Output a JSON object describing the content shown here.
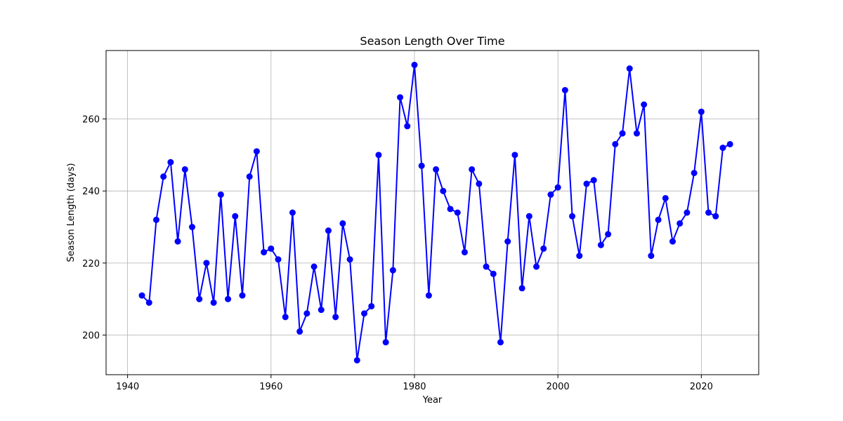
{
  "chart_data": {
    "type": "line",
    "title": "Season Length Over Time",
    "xlabel": "Year",
    "ylabel": "Season Length (days)",
    "xlim": [
      1937,
      2028
    ],
    "ylim": [
      189,
      279
    ],
    "xticks": [
      1940,
      1960,
      1980,
      2000,
      2020
    ],
    "yticks": [
      200,
      220,
      240,
      260
    ],
    "grid": true,
    "series": [
      {
        "color": "#0000ff",
        "marker": "circle",
        "x": [
          1942,
          1943,
          1944,
          1945,
          1946,
          1947,
          1948,
          1949,
          1950,
          1951,
          1952,
          1953,
          1954,
          1955,
          1956,
          1957,
          1958,
          1959,
          1960,
          1961,
          1962,
          1963,
          1964,
          1965,
          1966,
          1967,
          1968,
          1969,
          1970,
          1971,
          1972,
          1973,
          1974,
          1975,
          1976,
          1977,
          1978,
          1979,
          1980,
          1981,
          1982,
          1983,
          1984,
          1985,
          1986,
          1987,
          1988,
          1989,
          1990,
          1991,
          1992,
          1993,
          1994,
          1995,
          1996,
          1997,
          1998,
          1999,
          2000,
          2001,
          2002,
          2003,
          2004,
          2005,
          2006,
          2007,
          2008,
          2009,
          2010,
          2011,
          2012,
          2013,
          2014,
          2015,
          2016,
          2017,
          2018,
          2019,
          2020,
          2021,
          2022,
          2023,
          2024
        ],
        "y": [
          211,
          209,
          232,
          244,
          248,
          226,
          246,
          230,
          210,
          220,
          209,
          239,
          210,
          233,
          211,
          244,
          251,
          223,
          224,
          221,
          205,
          234,
          201,
          206,
          219,
          207,
          229,
          205,
          231,
          221,
          193,
          206,
          208,
          250,
          198,
          218,
          266,
          258,
          275,
          247,
          211,
          246,
          240,
          235,
          234,
          223,
          246,
          242,
          219,
          217,
          198,
          226,
          250,
          213,
          233,
          219,
          224,
          239,
          241,
          268,
          233,
          222,
          242,
          243,
          225,
          228,
          253,
          256,
          274,
          256,
          264,
          222,
          232,
          238,
          226,
          231,
          234,
          245,
          262,
          234,
          233,
          252,
          253
        ]
      }
    ]
  }
}
